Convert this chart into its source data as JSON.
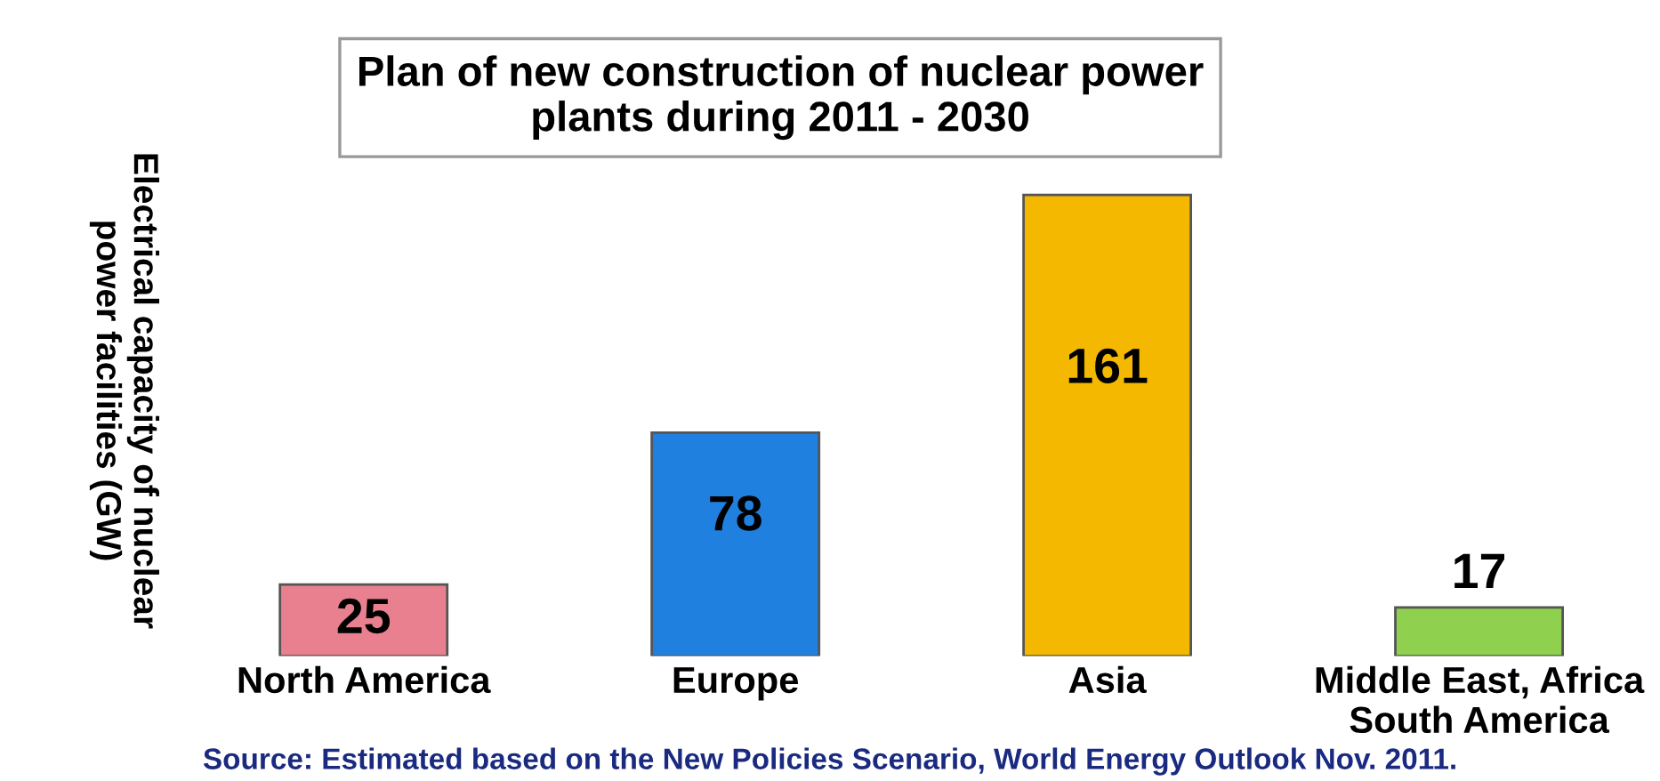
{
  "chart_data": {
    "type": "bar",
    "title": "Plan of new construction of nuclear power\nplants during 2011 - 2030",
    "ylabel": "Electrical capacity of nuclear\npower facilities (GW)",
    "categories": [
      "North America",
      "Europe",
      "Asia",
      "Middle East, Africa\nSouth America"
    ],
    "values": [
      25,
      78,
      161,
      17
    ],
    "colors": [
      "#e8808f",
      "#1f80e0",
      "#f5b800",
      "#8fd14f"
    ],
    "data_labels": true,
    "grid": false,
    "legend": false,
    "annotations": [
      "Source: Estimated based on the New Policies Scenario, World Energy Outlook Nov. 2011."
    ]
  }
}
